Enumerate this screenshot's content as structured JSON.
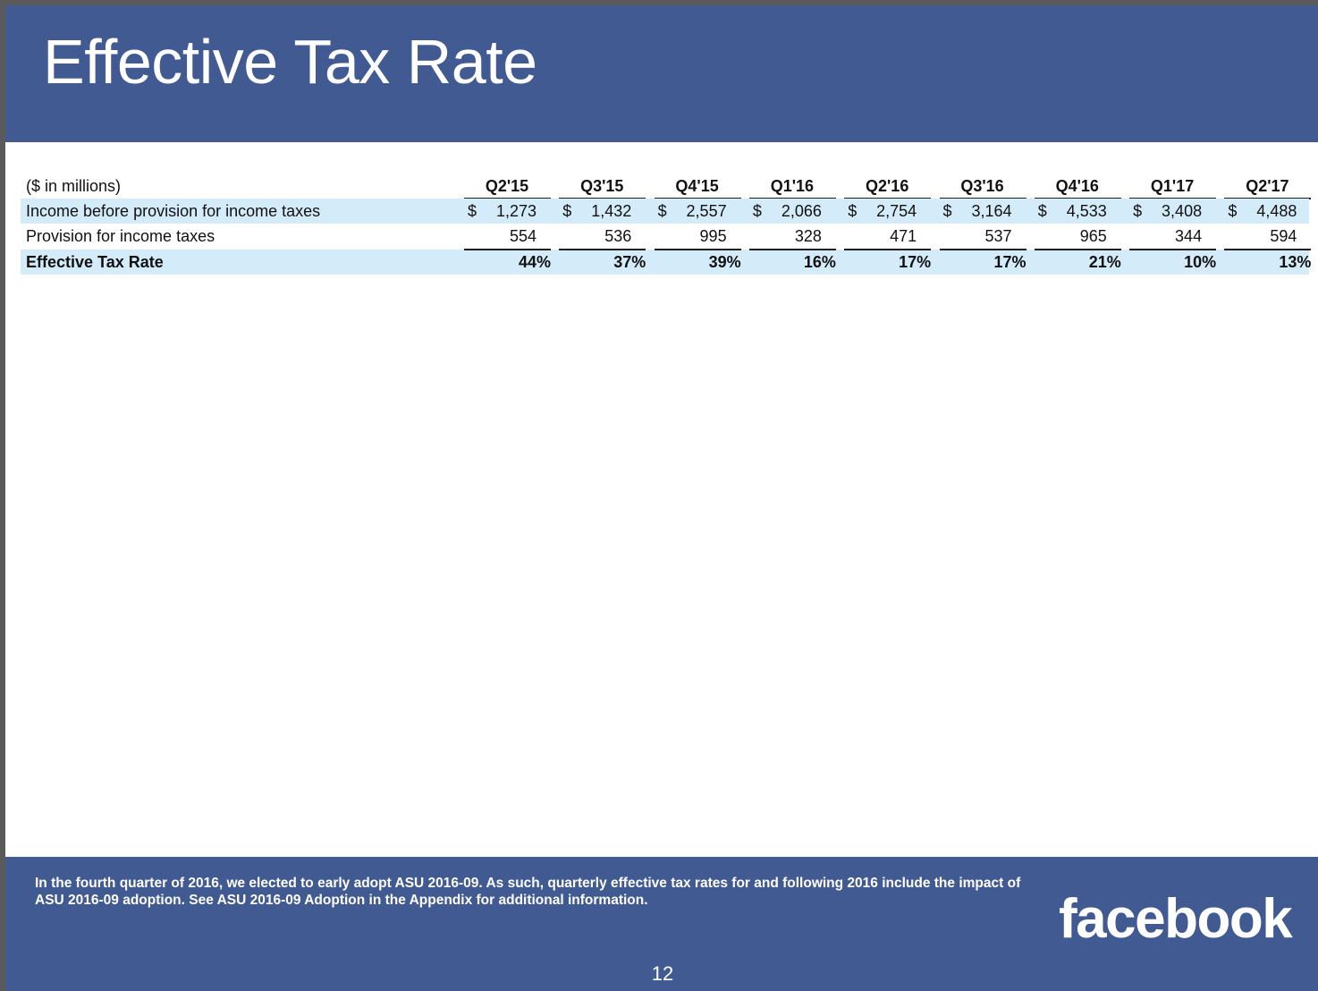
{
  "slide": {
    "title": "Effective Tax Rate",
    "footnote": "In the fourth quarter of 2016, we elected to early adopt ASU 2016-09. As such, quarterly effective tax rates for and following 2016 include the impact of ASU 2016-09 adoption. See ASU 2016-09 Adoption in the Appendix for additional information.",
    "logo_text": "facebook",
    "page_number": "12"
  },
  "colors": {
    "brand_blue": "#415A91",
    "row_shade": "#D4ECFA"
  },
  "table": {
    "units_label": "($ in millions)",
    "columns": [
      "Q2'15",
      "Q3'15",
      "Q4'15",
      "Q1'16",
      "Q2'16",
      "Q3'16",
      "Q4'16",
      "Q1'17",
      "Q2'17"
    ],
    "rows": [
      {
        "label": "Income before provision for income taxes",
        "currency": "$",
        "values": [
          "1,273",
          "1,432",
          "2,557",
          "2,066",
          "2,754",
          "3,164",
          "4,533",
          "3,408",
          "4,488"
        ]
      },
      {
        "label": "Provision for income taxes",
        "currency": "",
        "values": [
          "554",
          "536",
          "995",
          "328",
          "471",
          "537",
          "965",
          "344",
          "594"
        ]
      },
      {
        "label": "Effective Tax Rate",
        "currency": "",
        "values": [
          "44%",
          "37%",
          "39%",
          "16%",
          "17%",
          "17%",
          "21%",
          "10%",
          "13%"
        ]
      }
    ]
  }
}
